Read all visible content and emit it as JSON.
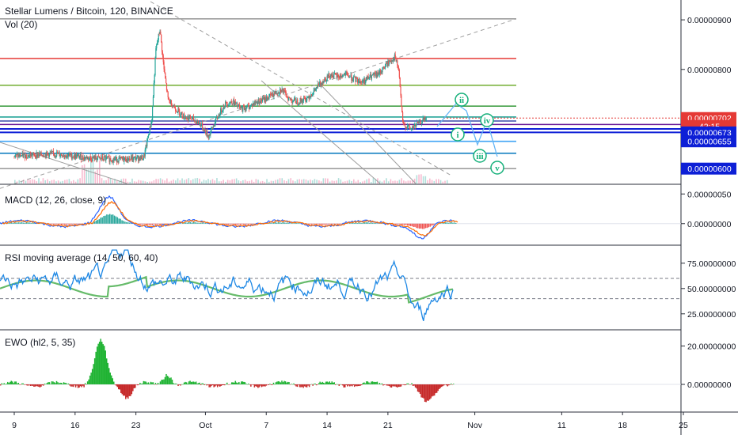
{
  "chart_data": [
    {
      "type": "line",
      "title": "Stellar Lumens / Bitcoin, 120, BINANCE",
      "subtitle": "Vol (20)",
      "y_ticks": [
        9e-06,
        8e-06
      ],
      "y_tick_labels": [
        "0.00000900",
        "0.00000800"
      ],
      "ylim": [
        5.7e-06,
        9.4e-06
      ],
      "price_tags": [
        {
          "label": "0.00000702",
          "value": 7.02e-06,
          "color": "#e53935"
        },
        {
          "label": "42:15",
          "value": 6.86e-06,
          "color": "#e53935"
        },
        {
          "label": "0.00000673",
          "value": 6.73e-06,
          "color": "#0d1fd6"
        },
        {
          "label": "0.00000655",
          "value": 6.55e-06,
          "color": "#0d1fd6"
        },
        {
          "label": "0.00000600",
          "value": 6e-06,
          "color": "#0d1fd6"
        }
      ],
      "horizontal_levels": [
        {
          "value": 9.02e-06,
          "color": "#9e9e9e"
        },
        {
          "value": 8.22e-06,
          "color": "#e53935"
        },
        {
          "value": 7.68e-06,
          "color": "#7cb342"
        },
        {
          "value": 7.26e-06,
          "color": "#43a047"
        },
        {
          "value": 7.04e-06,
          "color": "#26a69a"
        },
        {
          "value": 6.96e-06,
          "color": "#3949ab"
        },
        {
          "value": 6.89e-06,
          "color": "#6a1b9a"
        },
        {
          "value": 6.8e-06,
          "color": "#0d1fd6"
        },
        {
          "value": 6.73e-06,
          "color": "#0d1fd6"
        },
        {
          "value": 6.55e-06,
          "color": "#42a5f5"
        },
        {
          "value": 6.31e-06,
          "color": "#0277bd"
        },
        {
          "value": 6e-06,
          "color": "#9e9e9e"
        }
      ],
      "wave_labels": [
        "i",
        "ii",
        "iii",
        "iv",
        "v"
      ],
      "price_series": [
        {
          "x": 0,
          "y": 6.25e-06
        },
        {
          "x": 5,
          "y": 6.3e-06
        },
        {
          "x": 9,
          "y": 6.22e-06
        },
        {
          "x": 13,
          "y": 6.18e-06
        },
        {
          "x": 16,
          "y": 6.22e-06
        },
        {
          "x": 17,
          "y": 7e-06
        },
        {
          "x": 17.5,
          "y": 8.4e-06
        },
        {
          "x": 18,
          "y": 8.8e-06
        },
        {
          "x": 18.5,
          "y": 8e-06
        },
        {
          "x": 19,
          "y": 7.4e-06
        },
        {
          "x": 20,
          "y": 7.2e-06
        },
        {
          "x": 21,
          "y": 7.05e-06
        },
        {
          "x": 22,
          "y": 7e-06
        },
        {
          "x": 23,
          "y": 6.9e-06
        },
        {
          "x": 24,
          "y": 6.65e-06
        },
        {
          "x": 25,
          "y": 7e-06
        },
        {
          "x": 26,
          "y": 7.3e-06
        },
        {
          "x": 27,
          "y": 7.35e-06
        },
        {
          "x": 28,
          "y": 7.2e-06
        },
        {
          "x": 29,
          "y": 7.25e-06
        },
        {
          "x": 30,
          "y": 7.35e-06
        },
        {
          "x": 31,
          "y": 7.4e-06
        },
        {
          "x": 32,
          "y": 7.5e-06
        },
        {
          "x": 33,
          "y": 7.6e-06
        },
        {
          "x": 34,
          "y": 7.4e-06
        },
        {
          "x": 35,
          "y": 7.35e-06
        },
        {
          "x": 36,
          "y": 7.4e-06
        },
        {
          "x": 37,
          "y": 7.55e-06
        },
        {
          "x": 38,
          "y": 7.75e-06
        },
        {
          "x": 39,
          "y": 7.9e-06
        },
        {
          "x": 40,
          "y": 7.85e-06
        },
        {
          "x": 41,
          "y": 7.9e-06
        },
        {
          "x": 42,
          "y": 7.8e-06
        },
        {
          "x": 43,
          "y": 7.75e-06
        },
        {
          "x": 44,
          "y": 7.85e-06
        },
        {
          "x": 45,
          "y": 7.9e-06
        },
        {
          "x": 46,
          "y": 8.1e-06
        },
        {
          "x": 47,
          "y": 8.25e-06
        },
        {
          "x": 47.5,
          "y": 8e-06
        },
        {
          "x": 48,
          "y": 6.9e-06
        },
        {
          "x": 49,
          "y": 6.8e-06
        },
        {
          "x": 50,
          "y": 6.92e-06
        },
        {
          "x": 51,
          "y": 7.02e-06
        }
      ]
    },
    {
      "type": "line",
      "title": "MACD (12, 26, close, 9)",
      "y_ticks": [
        5e-07,
        0.0
      ],
      "y_tick_labels": [
        "0.00000050",
        "0.00000000"
      ],
      "ylim": [
        -3.5e-07,
        6.5e-07
      ]
    },
    {
      "type": "line",
      "title": "RSI moving average (14, 50, 60, 40)",
      "y_ticks": [
        75,
        50,
        25
      ],
      "y_tick_labels": [
        "75.00000000",
        "50.00000000",
        "25.00000000"
      ],
      "ylim": [
        10,
        92
      ],
      "bands": [
        60,
        40
      ]
    },
    {
      "type": "bar",
      "title": "EWO (hl2, 5, 35)",
      "y_ticks": [
        20,
        0
      ],
      "y_tick_labels": [
        "20.00000000",
        "0.00000000"
      ],
      "ylim": [
        -14,
        28
      ]
    }
  ],
  "x_axis": {
    "ticks": [
      {
        "label": "9",
        "day": 9
      },
      {
        "label": "16",
        "day": 16
      },
      {
        "label": "23",
        "day": 23
      },
      {
        "label": "Oct",
        "day": 31
      },
      {
        "label": "7",
        "day": 38
      },
      {
        "label": "14",
        "day": 45
      },
      {
        "label": "21",
        "day": 52
      },
      {
        "label": "Nov",
        "day": 62
      },
      {
        "label": "11",
        "day": 72
      },
      {
        "label": "18",
        "day": 79
      },
      {
        "label": "25",
        "day": 86
      }
    ]
  }
}
